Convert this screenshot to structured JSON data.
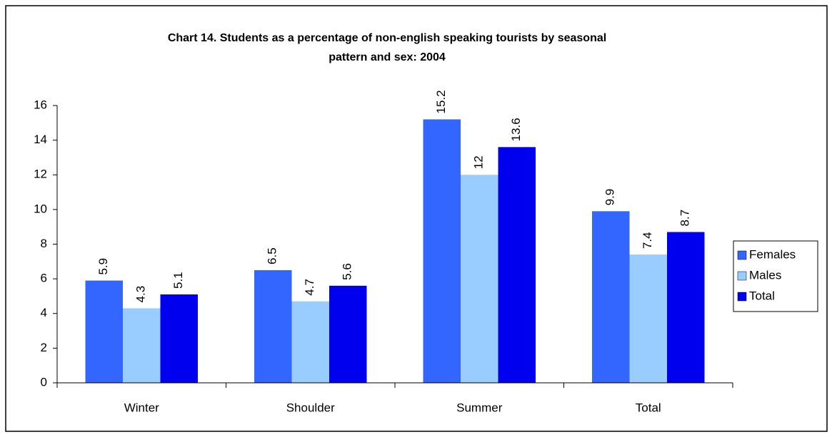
{
  "chart_data": {
    "type": "bar",
    "title": [
      "Chart 14. Students as a percentage of non-english speaking tourists by seasonal",
      "pattern and sex: 2004"
    ],
    "categories": [
      "Winter",
      "Shoulder",
      "Summer",
      "Total"
    ],
    "series": [
      {
        "name": "Females",
        "color": "#3366ff",
        "values": [
          5.9,
          6.5,
          15.2,
          9.9
        ]
      },
      {
        "name": "Males",
        "color": "#99ccff",
        "values": [
          4.3,
          4.7,
          12,
          7.4
        ]
      },
      {
        "name": "Total",
        "color": "#0000ee",
        "values": [
          5.1,
          5.6,
          13.6,
          8.7
        ]
      }
    ],
    "ylim": [
      0,
      16
    ],
    "yticks": [
      0,
      2,
      4,
      6,
      8,
      10,
      12,
      14,
      16
    ],
    "legend": "right"
  }
}
